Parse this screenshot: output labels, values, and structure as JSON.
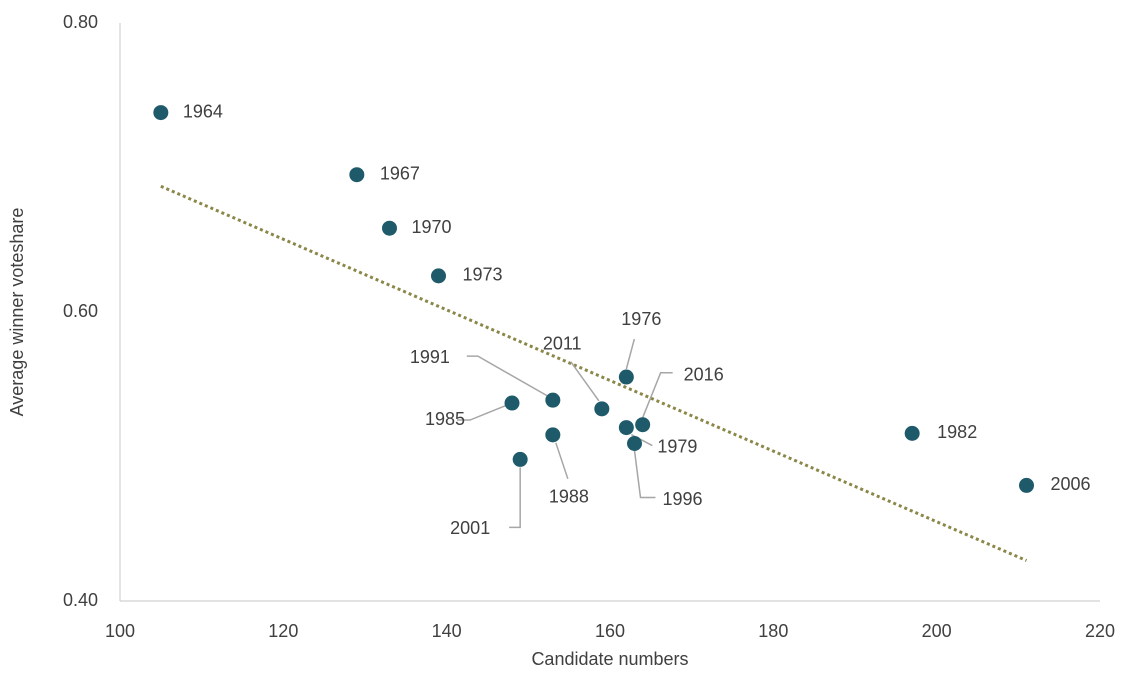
{
  "chart_data": {
    "type": "scatter",
    "xlabel": "Candidate numbers",
    "ylabel": "Average winner voteshare",
    "labels": [
      "1964",
      "1967",
      "1970",
      "1973",
      "1976",
      "1979",
      "1982",
      "1985",
      "1988",
      "1991",
      "1996",
      "2001",
      "2006",
      "2011",
      "2016"
    ],
    "x": [
      105,
      129,
      133,
      139,
      162,
      162,
      197,
      148,
      153,
      153,
      163,
      149,
      211,
      159,
      164
    ],
    "y": [
      0.738,
      0.695,
      0.658,
      0.625,
      0.555,
      0.52,
      0.516,
      0.537,
      0.515,
      0.539,
      0.509,
      0.498,
      0.48,
      0.533,
      0.522
    ],
    "color": "#1f5a6b",
    "trendline": {
      "x": [
        105,
        211
      ],
      "y": [
        0.687,
        0.428
      ],
      "color": "#8b8748"
    },
    "xlim": [
      100,
      220
    ],
    "xticks": [
      100,
      120,
      140,
      160,
      180,
      200,
      220
    ],
    "ylim": [
      0.4,
      0.8
    ],
    "yticks": [
      {
        "value": 0.4,
        "label": "0.40"
      },
      {
        "value": 0.6,
        "label": "0.60"
      },
      {
        "value": 0.8,
        "label": "0.80"
      }
    ],
    "grid": false
  }
}
